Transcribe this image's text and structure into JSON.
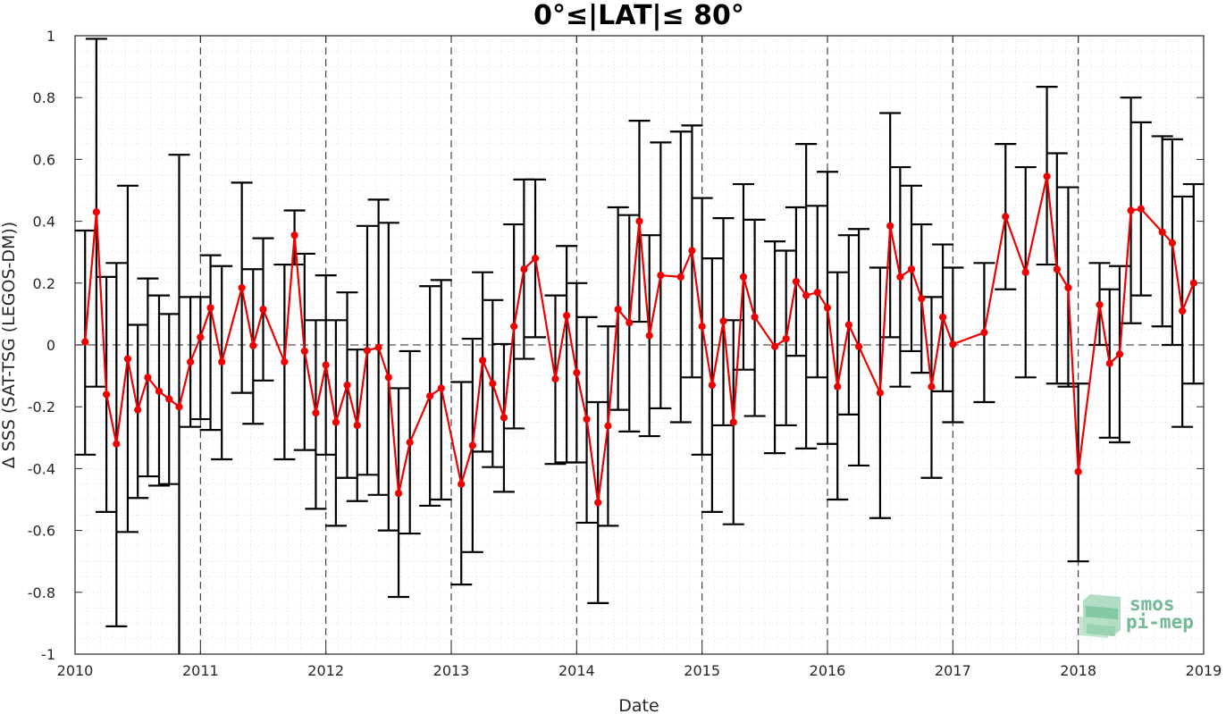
{
  "chart_data": {
    "type": "line",
    "title": "0°≤|LAT|≤ 80°",
    "xlabel": "Date",
    "ylabel": "Δ SSS (SAT-TSG (LEGOS-DM))",
    "xlim": [
      2010,
      2019
    ],
    "ylim": [
      -1,
      1
    ],
    "x_ticks": [
      "2010",
      "2011",
      "2012",
      "2013",
      "2014",
      "2015",
      "2016",
      "2017",
      "2018",
      "2019"
    ],
    "y_ticks": [
      "1",
      "0.8",
      "0.6",
      "0.4",
      "0.2",
      "0",
      "-0.2",
      "-0.4",
      "-0.6",
      "-0.8",
      "-1"
    ],
    "grid": "minor dotted, yearly dashed verticals, dashed zero line",
    "series_color": "#ee0000",
    "errorbar_color": "#000000",
    "series": [
      {
        "x": [
          2010.08,
          2010.17,
          2010.25,
          2010.33,
          2010.42,
          2010.5,
          2010.58,
          2010.67,
          2010.75,
          2010.83,
          2010.92,
          2011.0,
          2011.08,
          2011.17,
          2011.33,
          2011.42,
          2011.5,
          2011.67,
          2011.75,
          2011.83,
          2011.92,
          2012.0,
          2012.08,
          2012.17,
          2012.25,
          2012.33,
          2012.42,
          2012.5,
          2012.58,
          2012.67,
          2012.83,
          2012.92,
          2013.08,
          2013.17,
          2013.25,
          2013.33,
          2013.42,
          2013.5,
          2013.58,
          2013.67,
          2013.83,
          2013.92,
          2014.0,
          2014.08,
          2014.17,
          2014.25,
          2014.33,
          2014.42,
          2014.5,
          2014.58,
          2014.67,
          2014.83,
          2014.92,
          2015.0,
          2015.08,
          2015.17,
          2015.25,
          2015.33,
          2015.42,
          2015.58,
          2015.67,
          2015.75,
          2015.83,
          2015.92,
          2016.0,
          2016.08,
          2016.17,
          2016.25,
          2016.42,
          2016.5,
          2016.58,
          2016.67,
          2016.75,
          2016.83,
          2016.92,
          2017.0,
          2017.25,
          2017.42,
          2017.58,
          2017.75,
          2017.83,
          2017.92,
          2018.0,
          2018.17,
          2018.25,
          2018.33,
          2018.42,
          2018.5,
          2018.67,
          2018.75,
          2018.83,
          2018.92
        ],
        "y": [
          0.01,
          0.43,
          -0.16,
          -0.32,
          -0.045,
          -0.21,
          -0.105,
          -0.15,
          -0.175,
          -0.2,
          -0.055,
          0.025,
          0.12,
          -0.055,
          0.185,
          -0.002,
          0.115,
          -0.055,
          0.355,
          -0.02,
          -0.22,
          -0.065,
          -0.25,
          -0.13,
          -0.26,
          -0.018,
          -0.008,
          -0.105,
          -0.48,
          -0.315,
          -0.165,
          -0.14,
          -0.45,
          -0.325,
          -0.05,
          -0.125,
          -0.235,
          0.06,
          0.245,
          0.28,
          -0.11,
          0.095,
          -0.09,
          -0.24,
          -0.51,
          -0.262,
          0.115,
          0.072,
          0.4,
          0.03,
          0.225,
          0.22,
          0.305,
          0.06,
          -0.13,
          0.077,
          -0.25,
          0.22,
          0.09,
          -0.005,
          0.02,
          0.205,
          0.16,
          0.17,
          0.12,
          -0.135,
          0.065,
          -0.005,
          -0.155,
          0.385,
          0.22,
          0.245,
          0.15,
          -0.135,
          0.09,
          0.002,
          0.04,
          0.415,
          0.235,
          0.545,
          0.245,
          0.185,
          -0.41,
          0.13,
          -0.06,
          -0.03,
          0.435,
          0.44,
          0.365,
          0.33,
          0.11,
          0.2
        ],
        "upper": [
          0.37,
          0.99,
          0.22,
          0.265,
          0.515,
          0.065,
          0.215,
          0.16,
          0.1,
          0.615,
          0.155,
          0.155,
          0.29,
          0.255,
          0.525,
          0.245,
          0.345,
          0.26,
          0.435,
          0.295,
          0.08,
          0.225,
          0.08,
          0.17,
          -0.015,
          0.385,
          0.47,
          0.395,
          -0.14,
          -0.02,
          0.19,
          0.21,
          -0.12,
          0.02,
          0.235,
          0.145,
          0.003,
          0.39,
          0.535,
          0.535,
          0.16,
          0.32,
          0.2,
          0.09,
          -0.185,
          0.06,
          0.445,
          0.42,
          0.725,
          0.355,
          0.655,
          0.69,
          0.71,
          0.475,
          0.28,
          0.41,
          0.08,
          0.52,
          0.405,
          0.335,
          0.305,
          0.445,
          0.65,
          0.45,
          0.56,
          0.235,
          0.355,
          0.375,
          0.25,
          0.75,
          0.575,
          0.515,
          0.39,
          0.155,
          0.325,
          0.25,
          0.265,
          0.65,
          0.575,
          0.835,
          0.62,
          0.51,
          -0.125,
          0.265,
          0.18,
          0.255,
          0.8,
          0.72,
          0.675,
          0.665,
          0.48,
          0.52
        ],
        "lower": [
          -0.355,
          -0.135,
          -0.54,
          -0.91,
          -0.605,
          -0.495,
          -0.425,
          -0.455,
          -0.45,
          -1.0,
          -0.265,
          -0.24,
          -0.275,
          -0.37,
          -0.155,
          -0.255,
          -0.115,
          -0.37,
          0.26,
          -0.34,
          -0.53,
          -0.355,
          -0.585,
          -0.43,
          -0.505,
          -0.42,
          -0.485,
          -0.6,
          -0.815,
          -0.61,
          -0.52,
          -0.5,
          -0.775,
          -0.67,
          -0.345,
          -0.395,
          -0.475,
          -0.27,
          -0.045,
          0.025,
          -0.385,
          -0.38,
          -0.38,
          -0.575,
          -0.835,
          -0.585,
          -0.21,
          -0.28,
          0.075,
          -0.295,
          -0.205,
          -0.25,
          -0.105,
          -0.355,
          -0.54,
          -0.26,
          -0.58,
          -0.08,
          -0.23,
          -0.35,
          -0.26,
          -0.035,
          -0.335,
          -0.105,
          -0.32,
          -0.5,
          -0.225,
          -0.39,
          -0.56,
          0.025,
          -0.135,
          -0.02,
          -0.09,
          -0.43,
          -0.15,
          -0.25,
          -0.185,
          0.18,
          -0.105,
          0.26,
          -0.125,
          -0.135,
          -0.7,
          0.0,
          -0.3,
          -0.315,
          0.07,
          0.16,
          0.06,
          0.0,
          -0.265,
          -0.125
        ]
      }
    ]
  },
  "logo": {
    "line1": "smos",
    "line2": "pi-mep"
  }
}
